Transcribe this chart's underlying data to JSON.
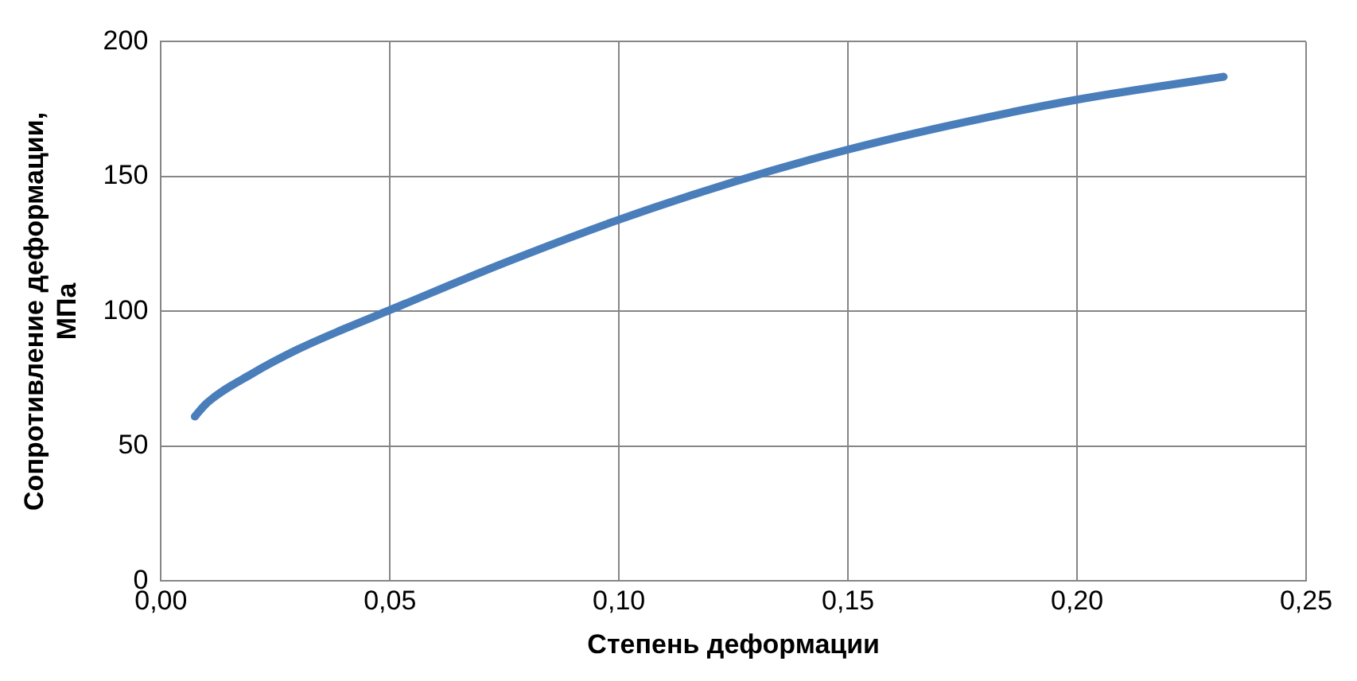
{
  "chart_data": {
    "type": "line",
    "xlabel": "Степень деформации",
    "ylabel": "Сопротивление деформации, МПа",
    "series": [
      {
        "color": "#4a7ebb",
        "x": [
          0.0074,
          0.01,
          0.02,
          0.03,
          0.04,
          0.05,
          0.075,
          0.1,
          0.125,
          0.15,
          0.175,
          0.2,
          0.232
        ],
        "values": [
          61,
          66,
          77,
          86,
          93.5,
          100.5,
          118,
          134,
          148,
          160,
          170,
          178.5,
          187
        ]
      }
    ],
    "xlim": [
      0,
      0.25
    ],
    "xticks": [
      {
        "value": 0,
        "label": "0,00"
      },
      {
        "value": 0.05,
        "label": "0,05"
      },
      {
        "value": 0.1,
        "label": "0,10"
      },
      {
        "value": 0.15,
        "label": "0,15"
      },
      {
        "value": 0.2,
        "label": "0,20"
      },
      {
        "value": 0.25,
        "label": "0,25"
      }
    ],
    "ylim": [
      0,
      200
    ],
    "yticks": [
      0,
      50,
      100,
      150,
      200
    ],
    "grid": true,
    "legend": false,
    "marker": "none",
    "line_style": "solid"
  }
}
